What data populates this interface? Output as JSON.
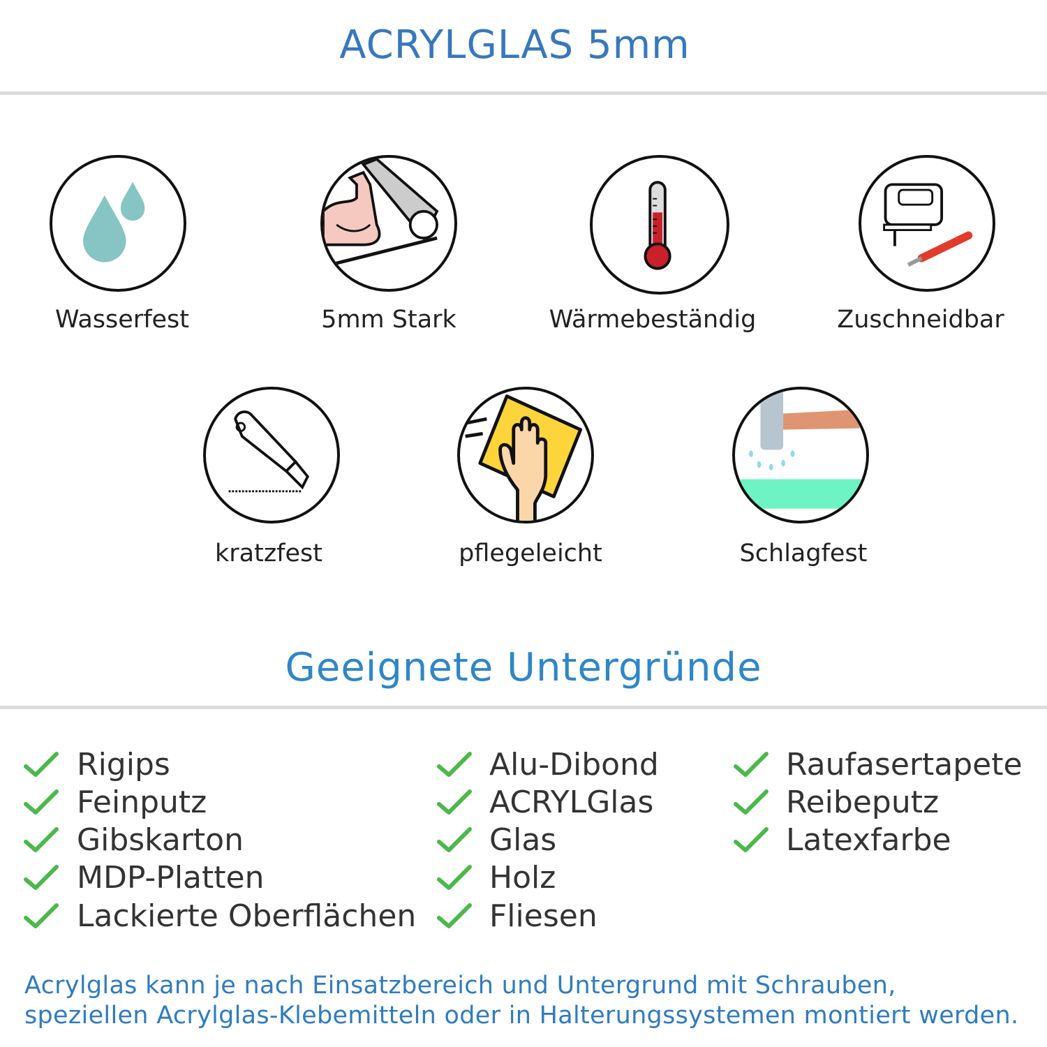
{
  "title": "ACRYLGLAS 5mm",
  "features": [
    {
      "label": "Wasserfest",
      "icon": "water-drops-icon"
    },
    {
      "label": "5mm Stark",
      "icon": "muscle-arm-icon"
    },
    {
      "label": "Wärmebeständig",
      "icon": "thermometer-icon"
    },
    {
      "label": "Zuschneidbar",
      "icon": "jigsaw-knife-icon"
    },
    {
      "label": "kratzfest",
      "icon": "cutter-knife-icon"
    },
    {
      "label": "pflegeleicht",
      "icon": "hand-cloth-icon"
    },
    {
      "label": "Schlagfest",
      "icon": "hammer-icon"
    }
  ],
  "surfaces_heading": "Geeignete Untergründe",
  "surfaces": {
    "col1": [
      "Rigips",
      "Feinputz",
      "Gibskarton",
      "MDP-Platten",
      "Lackierte Oberflächen"
    ],
    "col2": [
      "Alu-Dibond",
      "ACRYLGlas",
      "Glas",
      "Holz",
      "Fliesen"
    ],
    "col3": [
      "Raufasertapete",
      "Reibeputz",
      "Latexfarbe"
    ]
  },
  "footer": {
    "line1": "Acrylglas kann je nach Einsatzbereich und Untergrund mit Schrauben,",
    "line2": "speziellen Acrylglas-Klebemitteln oder in Halterungssystemen montiert werden."
  },
  "colors": {
    "title": "#3778bd",
    "heading": "#2f86c9",
    "check": "#4cb84c",
    "footer": "#2f7cc0"
  }
}
